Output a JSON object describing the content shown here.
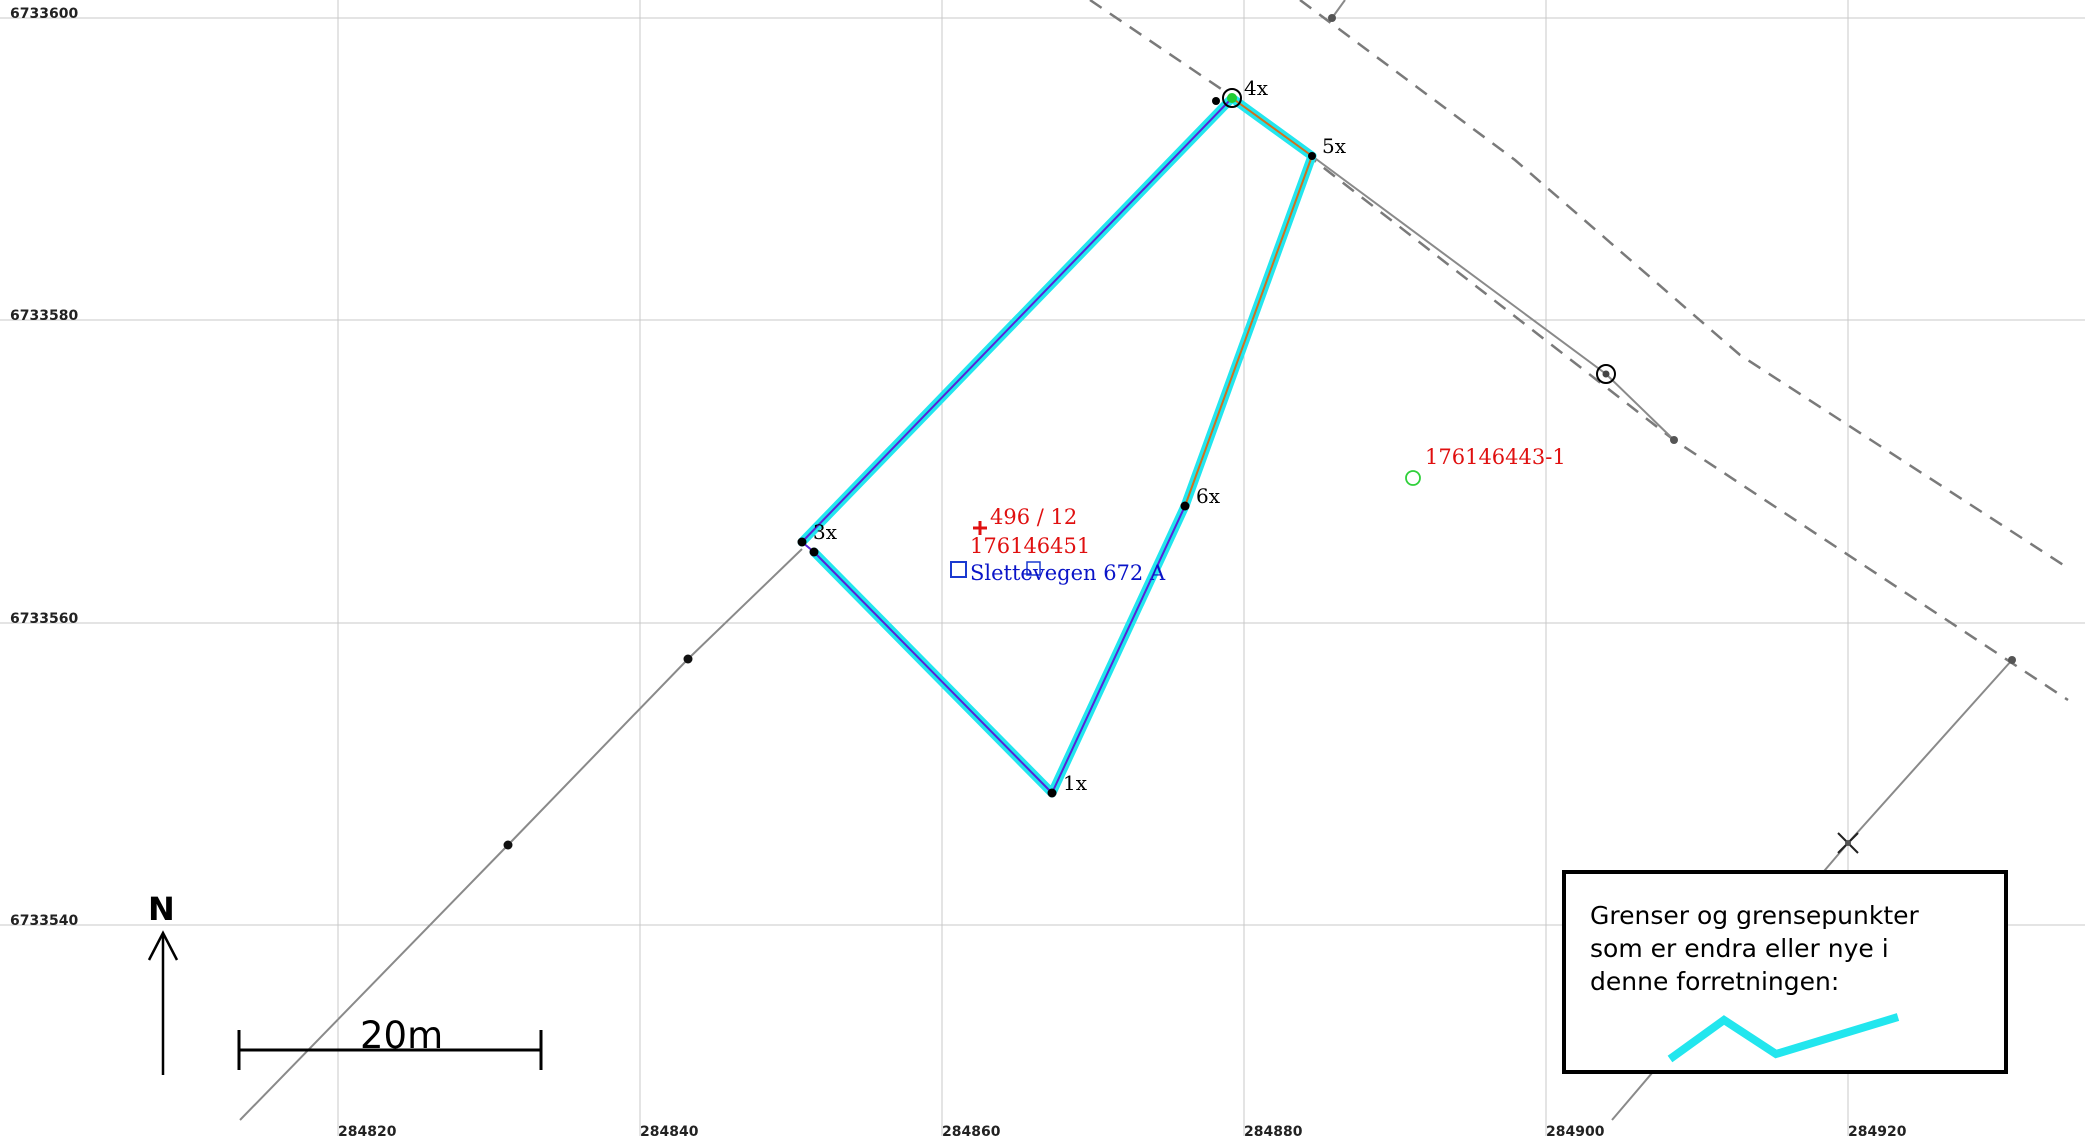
{
  "map": {
    "easting_labels": [
      "284820",
      "284840",
      "284860",
      "284880",
      "284900",
      "284920"
    ],
    "northing_labels": [
      "6733600",
      "6733580",
      "6733560",
      "6733540"
    ],
    "boundary_points": [
      "1x",
      "3x",
      "4x",
      "5x",
      "6x"
    ],
    "parcel": {
      "number": "496 / 12",
      "id": "176146451",
      "address": "Slettevegen 672 A"
    },
    "neighbour_id": "176146443-1",
    "north_label": "N",
    "scale_label": "20m",
    "legend": {
      "lines": [
        "Grenser og grensepunkter",
        "som er endra eller nye i",
        "denne forretningen:"
      ],
      "swatch_color": "#22e6ee"
    },
    "colors": {
      "changed_boundary": "#22e6ee",
      "parcel_line": "#5a22d8",
      "label_red": "#e01010",
      "label_blue": "#0a14c8",
      "grid": "#c8c8c8"
    }
  }
}
